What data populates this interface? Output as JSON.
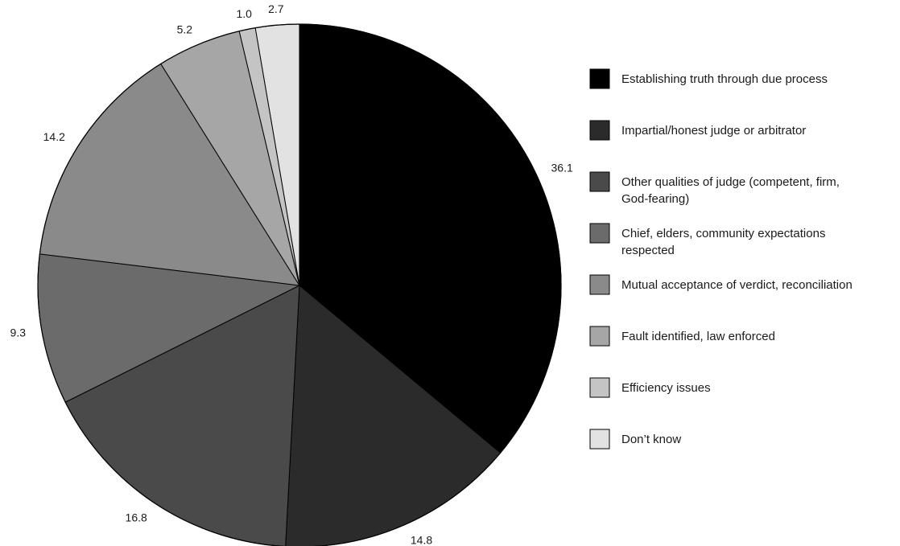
{
  "chart_data": {
    "type": "pie",
    "title": "",
    "legend_position": "right",
    "slices": [
      {
        "label": "Establishing truth through due process",
        "value": 36.1,
        "value_label": "36.1",
        "color": "#000000"
      },
      {
        "label": "Impartial/honest judge or arbitrator",
        "value": 14.8,
        "value_label": "14.8",
        "color": "#2b2b2b"
      },
      {
        "label": "Other qualities of judge (competent, firm, God-fearing)",
        "value": 16.8,
        "value_label": "16.8",
        "color": "#4a4a4a"
      },
      {
        "label": "Chief, elders, community expectations respected",
        "value": 9.3,
        "value_label": "9.3",
        "color": "#6b6b6b"
      },
      {
        "label": "Mutual acceptance of verdict, reconciliation",
        "value": 14.2,
        "value_label": "14.2",
        "color": "#8a8a8a"
      },
      {
        "label": "Fault identified, law enforced",
        "value": 5.2,
        "value_label": "5.2",
        "color": "#a6a6a6"
      },
      {
        "label": "Efficiency issues",
        "value": 1.0,
        "value_label": "1.0",
        "color": "#c4c4c4"
      },
      {
        "label": "Don’t know",
        "value": 2.7,
        "value_label": "2.7",
        "color": "#e2e2e2"
      }
    ],
    "legend_lines": [
      [
        "Establishing truth through due process"
      ],
      [
        "Impartial/honest judge or arbitrator"
      ],
      [
        "Other qualities of judge (competent, firm,",
        "God-fearing)"
      ],
      [
        "Chief, elders, community expectations",
        "respected"
      ],
      [
        "Mutual acceptance of verdict, reconciliation"
      ],
      [
        "Fault identified, law enforced"
      ],
      [
        "Efficiency issues"
      ],
      [
        "Don’t know"
      ]
    ]
  }
}
